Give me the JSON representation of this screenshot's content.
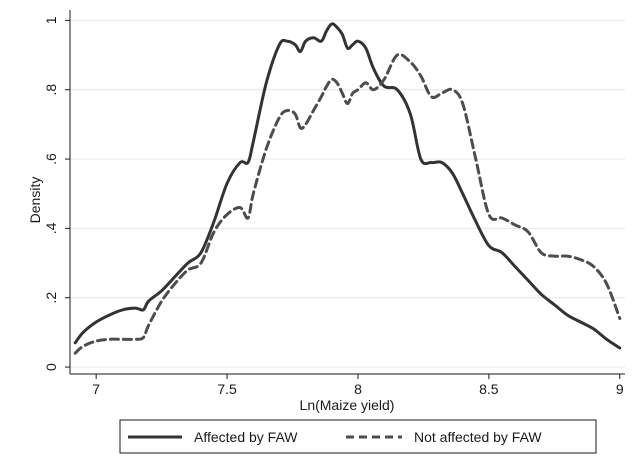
{
  "chart_data": {
    "type": "line",
    "xlabel": "Ln(Maize yield)",
    "ylabel": "Density",
    "xlim": [
      6.9,
      9.02
    ],
    "ylim": [
      -0.02,
      1.03
    ],
    "x_ticks": [
      7,
      7.5,
      8,
      8.5,
      9
    ],
    "x_tick_labels": [
      "7",
      "7.5",
      "8",
      "8.5",
      "9"
    ],
    "y_ticks": [
      0,
      0.2,
      0.4,
      0.6,
      0.8,
      1
    ],
    "y_tick_labels": [
      "0",
      ".2",
      ".4",
      ".6",
      ".8",
      "1"
    ],
    "grid": "horizontal",
    "legend_position": "bottom",
    "series": [
      {
        "name": "Affected by FAW",
        "style": "solid",
        "color": "#333333",
        "x": [
          6.92,
          6.95,
          7.0,
          7.05,
          7.1,
          7.15,
          7.18,
          7.2,
          7.25,
          7.3,
          7.35,
          7.4,
          7.45,
          7.5,
          7.55,
          7.58,
          7.6,
          7.65,
          7.7,
          7.73,
          7.76,
          7.78,
          7.8,
          7.83,
          7.86,
          7.88,
          7.9,
          7.92,
          7.94,
          7.96,
          7.98,
          8.0,
          8.03,
          8.06,
          8.1,
          8.15,
          8.2,
          8.24,
          8.28,
          8.32,
          8.36,
          8.4,
          8.45,
          8.5,
          8.55,
          8.6,
          8.65,
          8.7,
          8.75,
          8.8,
          8.85,
          8.9,
          8.95,
          9.0
        ],
        "y": [
          0.07,
          0.1,
          0.13,
          0.15,
          0.165,
          0.17,
          0.165,
          0.19,
          0.22,
          0.26,
          0.3,
          0.33,
          0.42,
          0.53,
          0.59,
          0.59,
          0.65,
          0.82,
          0.93,
          0.94,
          0.93,
          0.91,
          0.94,
          0.95,
          0.94,
          0.97,
          0.99,
          0.98,
          0.96,
          0.92,
          0.93,
          0.94,
          0.92,
          0.86,
          0.81,
          0.8,
          0.73,
          0.6,
          0.59,
          0.59,
          0.56,
          0.5,
          0.42,
          0.35,
          0.33,
          0.29,
          0.25,
          0.21,
          0.18,
          0.15,
          0.13,
          0.11,
          0.08,
          0.055
        ]
      },
      {
        "name": "Not affected by FAW",
        "style": "dashed",
        "color": "#4d4d4d",
        "x": [
          6.92,
          6.95,
          7.0,
          7.05,
          7.1,
          7.15,
          7.18,
          7.2,
          7.25,
          7.3,
          7.35,
          7.4,
          7.45,
          7.5,
          7.55,
          7.58,
          7.6,
          7.65,
          7.7,
          7.73,
          7.76,
          7.78,
          7.8,
          7.83,
          7.86,
          7.88,
          7.9,
          7.92,
          7.94,
          7.96,
          7.98,
          8.0,
          8.03,
          8.06,
          8.1,
          8.15,
          8.2,
          8.24,
          8.28,
          8.32,
          8.36,
          8.4,
          8.45,
          8.5,
          8.55,
          8.6,
          8.65,
          8.7,
          8.75,
          8.8,
          8.85,
          8.9,
          8.95,
          9.0
        ],
        "y": [
          0.04,
          0.06,
          0.075,
          0.08,
          0.08,
          0.08,
          0.085,
          0.12,
          0.19,
          0.24,
          0.28,
          0.3,
          0.39,
          0.44,
          0.46,
          0.43,
          0.5,
          0.63,
          0.72,
          0.74,
          0.73,
          0.69,
          0.7,
          0.74,
          0.78,
          0.81,
          0.83,
          0.82,
          0.79,
          0.76,
          0.79,
          0.8,
          0.82,
          0.8,
          0.83,
          0.9,
          0.88,
          0.84,
          0.78,
          0.79,
          0.8,
          0.76,
          0.6,
          0.44,
          0.43,
          0.41,
          0.39,
          0.33,
          0.32,
          0.32,
          0.31,
          0.29,
          0.24,
          0.14
        ]
      }
    ]
  }
}
